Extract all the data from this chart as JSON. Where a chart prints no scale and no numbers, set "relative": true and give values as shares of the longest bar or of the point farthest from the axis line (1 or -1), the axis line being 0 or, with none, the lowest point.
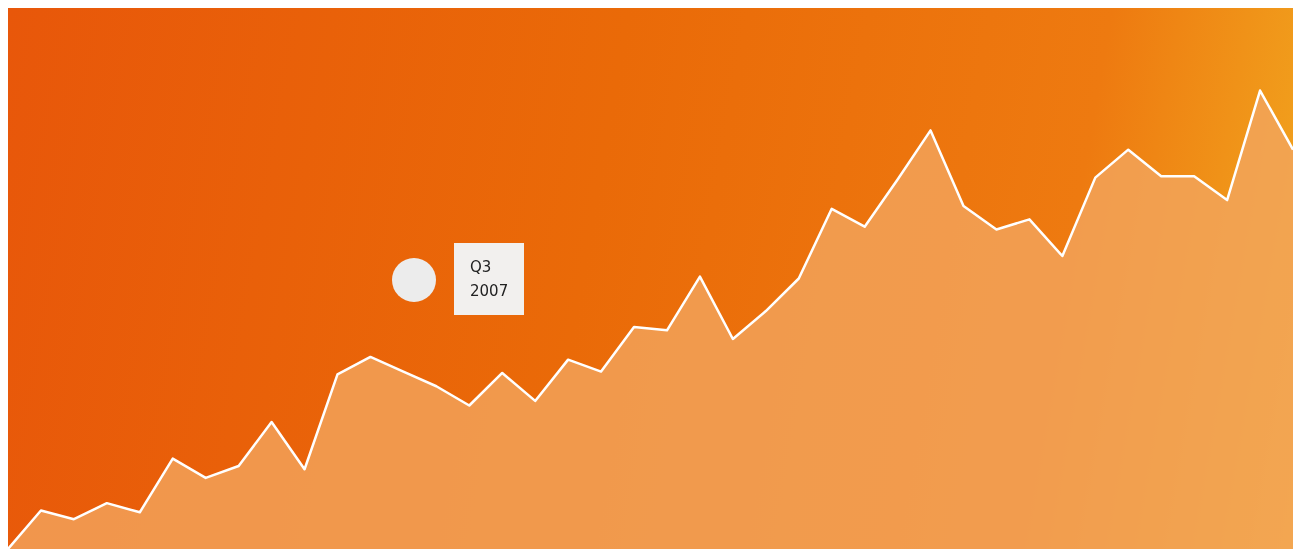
{
  "chart_data": {
    "type": "area",
    "relative": true,
    "color": "#f2a55e",
    "categories": [
      null,
      null,
      null,
      null,
      null,
      null,
      null,
      null,
      null,
      null,
      null,
      null,
      null,
      null,
      null,
      null,
      null,
      null,
      null,
      null,
      null,
      null,
      null,
      null,
      null,
      null,
      null,
      null,
      null,
      null,
      null,
      null,
      null,
      null,
      null,
      null,
      null,
      null,
      null,
      null
    ],
    "values": [
      0,
      0.084,
      0.065,
      0.1,
      0.08,
      0.197,
      0.155,
      0.181,
      0.277,
      0.174,
      0.381,
      0.419,
      0.387,
      0.355,
      0.313,
      0.384,
      0.323,
      0.413,
      0.387,
      0.484,
      0.477,
      0.594,
      0.458,
      0.519,
      0.59,
      0.742,
      0.703,
      0.806,
      0.913,
      0.748,
      0.697,
      0.719,
      0.639,
      0.81,
      0.871,
      0.813,
      0.813,
      0.761,
      1,
      0.871
    ],
    "annotations": [
      "Q3\n2007"
    ]
  }
}
